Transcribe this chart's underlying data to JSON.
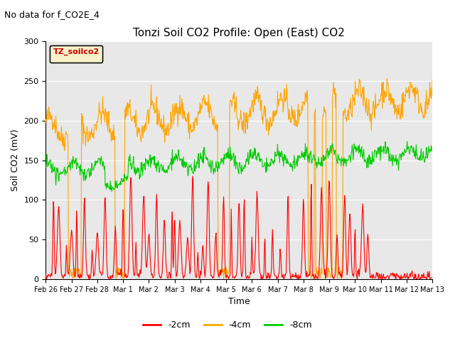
{
  "title": "Tonzi Soil CO2 Profile: Open (East) CO2",
  "subtitle": "No data for f_CO2E_4",
  "ylabel": "Soil CO2 (mV)",
  "xlabel": "Time",
  "legend_label": "TZ_soilco2",
  "legend_entries": [
    "-2cm",
    "-4cm",
    "-8cm"
  ],
  "legend_colors": [
    "#ff0000",
    "#ffa500",
    "#00cc00"
  ],
  "ylim": [
    0,
    300
  ],
  "bg_color": "#e8e8e8",
  "line_colors": {
    "2cm": "#ff0000",
    "4cm": "#ffa500",
    "8cm": "#00cc00"
  },
  "xtick_labels": [
    "Feb 26",
    "Feb 27",
    "Feb 28",
    "Mar 1",
    "Mar 2",
    "Mar 3",
    "Mar 4",
    "Mar 5",
    "Mar 6",
    "Mar 7",
    "Mar 8",
    "Mar 9",
    "Mar 10",
    "Mar 11",
    "Mar 12",
    "Mar 13"
  ],
  "ytick_labels": [
    "0",
    "50",
    "100",
    "150",
    "200",
    "250",
    "300"
  ]
}
